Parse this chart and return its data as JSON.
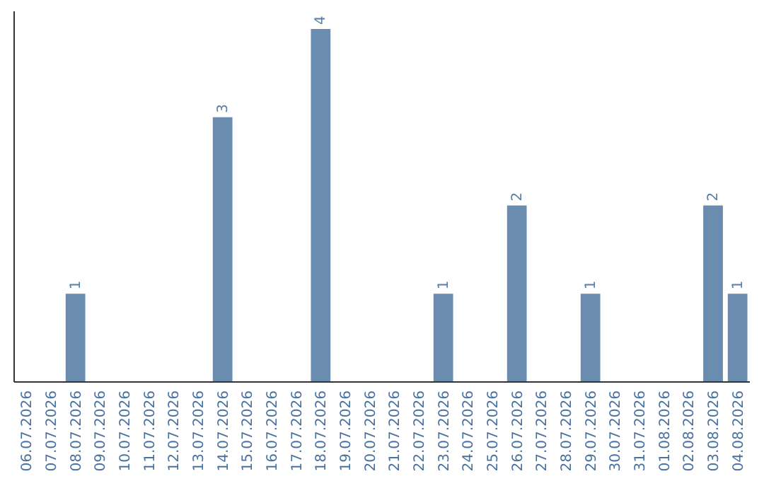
{
  "chart_data": {
    "type": "bar",
    "categories": [
      "06.07.2026",
      "07.07.2026",
      "08.07.2026",
      "09.07.2026",
      "10.07.2026",
      "11.07.2026",
      "12.07.2026",
      "13.07.2026",
      "14.07.2026",
      "15.07.2026",
      "16.07.2026",
      "17.07.2026",
      "18.07.2026",
      "19.07.2026",
      "20.07.2026",
      "21.07.2026",
      "22.07.2026",
      "23.07.2026",
      "24.07.2026",
      "25.07.2026",
      "26.07.2026",
      "27.07.2026",
      "28.07.2026",
      "29.07.2026",
      "30.07.2026",
      "31.07.2026",
      "01.08.2026",
      "02.08.2026",
      "03.08.2026",
      "04.08.2026"
    ],
    "values": [
      0,
      0,
      1,
      0,
      0,
      0,
      0,
      0,
      3,
      0,
      0,
      0,
      4,
      0,
      0,
      0,
      0,
      1,
      0,
      0,
      2,
      0,
      0,
      1,
      0,
      0,
      0,
      0,
      2,
      1
    ],
    "value_labels": [
      null,
      null,
      "1",
      null,
      null,
      null,
      null,
      null,
      "3",
      null,
      null,
      null,
      "4",
      null,
      null,
      null,
      null,
      "1",
      null,
      null,
      "2",
      null,
      null,
      "1",
      null,
      null,
      null,
      null,
      "2",
      "1"
    ],
    "color": "#6a8caf",
    "ylim": [
      0,
      4.2
    ],
    "tick_labels": "x"
  }
}
